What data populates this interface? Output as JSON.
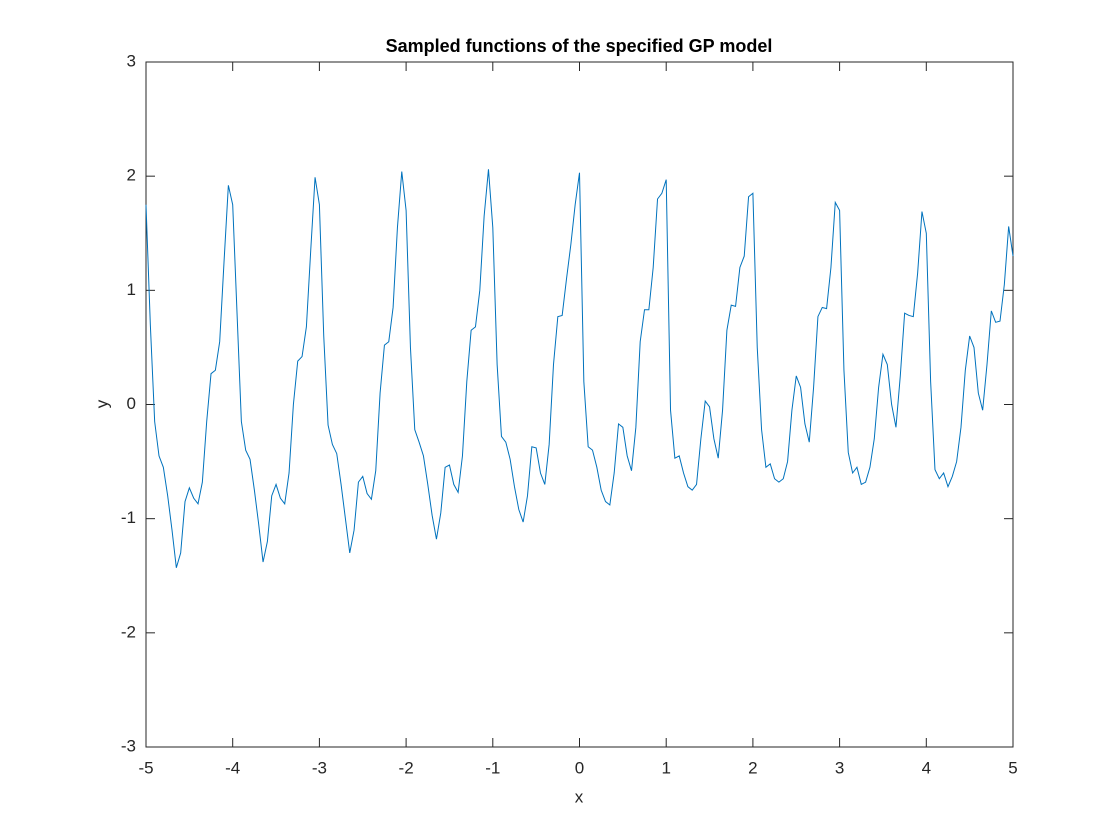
{
  "chart_data": {
    "type": "line",
    "title": "Sampled functions of the specified GP model",
    "x_label": "x",
    "y_label": "y",
    "color": "#0072bd",
    "x": [
      -5,
      -4.95,
      -4.9,
      -4.85,
      -4.8,
      -4.75,
      -4.7,
      -4.65,
      -4.6,
      -4.55,
      -4.5,
      -4.45,
      -4.4,
      -4.35,
      -4.3,
      -4.25,
      -4.2,
      -4.15,
      -4.1,
      -4.05,
      -4,
      -3.95,
      -3.9,
      -3.85,
      -3.8,
      -3.75,
      -3.7,
      -3.65,
      -3.6,
      -3.55,
      -3.5,
      -3.45,
      -3.4,
      -3.35,
      -3.3,
      -3.25,
      -3.2,
      -3.15,
      -3.1,
      -3.05,
      -3,
      -2.95,
      -2.9,
      -2.85,
      -2.8,
      -2.75,
      -2.7,
      -2.65,
      -2.6,
      -2.55,
      -2.5,
      -2.45,
      -2.4,
      -2.35,
      -2.3,
      -2.25,
      -2.2,
      -2.15,
      -2.1,
      -2.05,
      -2,
      -1.95,
      -1.9,
      -1.85,
      -1.8,
      -1.75,
      -1.7,
      -1.65,
      -1.6,
      -1.55,
      -1.5,
      -1.45,
      -1.4,
      -1.35,
      -1.3,
      -1.25,
      -1.2,
      -1.15,
      -1.1,
      -1.05,
      -1,
      -0.95,
      -0.9,
      -0.85,
      -0.8,
      -0.75,
      -0.7,
      -0.65,
      -0.6,
      -0.55,
      -0.5,
      -0.45,
      -0.4,
      -0.35,
      -0.3,
      -0.25,
      -0.2,
      -0.15,
      -0.1,
      -0.05,
      0,
      0.05,
      0.1,
      0.15,
      0.2,
      0.25,
      0.3,
      0.35,
      0.4,
      0.45,
      0.5,
      0.55,
      0.6,
      0.65,
      0.7,
      0.75,
      0.8,
      0.85,
      0.9,
      0.95,
      1,
      1.05,
      1.1,
      1.15,
      1.2,
      1.25,
      1.3,
      1.35,
      1.4,
      1.45,
      1.5,
      1.55,
      1.6,
      1.65,
      1.7,
      1.75,
      1.8,
      1.85,
      1.9,
      1.95,
      2,
      2.05,
      2.1,
      2.15,
      2.2,
      2.25,
      2.3,
      2.35,
      2.4,
      2.45,
      2.5,
      2.55,
      2.6,
      2.65,
      2.7,
      2.75,
      2.8,
      2.85,
      2.9,
      2.95,
      3,
      3.05,
      3.1,
      3.15,
      3.2,
      3.25,
      3.3,
      3.35,
      3.4,
      3.45,
      3.5,
      3.55,
      3.6,
      3.65,
      3.7,
      3.75,
      3.8,
      3.85,
      3.9,
      3.95,
      4,
      4.05,
      4.1,
      4.15,
      4.2,
      4.25,
      4.3,
      4.35,
      4.4,
      4.45,
      4.5,
      4.55,
      4.6,
      4.65,
      4.7,
      4.75,
      4.8,
      4.85,
      4.9,
      4.95,
      5
    ],
    "values": [
      1.75,
      0.7,
      -0.15,
      -0.45,
      -0.55,
      -0.8,
      -1.1,
      -1.43,
      -1.3,
      -0.85,
      -0.73,
      -0.82,
      -0.87,
      -0.68,
      -0.15,
      0.27,
      0.3,
      0.55,
      1.25,
      1.92,
      1.75,
      0.8,
      -0.15,
      -0.4,
      -0.48,
      -0.75,
      -1.05,
      -1.38,
      -1.2,
      -0.8,
      -0.7,
      -0.82,
      -0.87,
      -0.6,
      0.0,
      0.38,
      0.42,
      0.68,
      1.35,
      1.99,
      1.75,
      0.6,
      -0.18,
      -0.35,
      -0.43,
      -0.7,
      -1.0,
      -1.3,
      -1.1,
      -0.68,
      -0.63,
      -0.78,
      -0.83,
      -0.58,
      0.1,
      0.52,
      0.55,
      0.85,
      1.55,
      2.04,
      1.7,
      0.5,
      -0.22,
      -0.33,
      -0.45,
      -0.7,
      -0.97,
      -1.18,
      -0.95,
      -0.55,
      -0.53,
      -0.7,
      -0.77,
      -0.45,
      0.2,
      0.65,
      0.68,
      1.0,
      1.65,
      2.06,
      1.55,
      0.35,
      -0.28,
      -0.33,
      -0.48,
      -0.72,
      -0.92,
      -1.03,
      -0.8,
      -0.37,
      -0.38,
      -0.6,
      -0.7,
      -0.35,
      0.35,
      0.77,
      0.78,
      1.1,
      1.4,
      1.75,
      2.03,
      0.2,
      -0.37,
      -0.4,
      -0.55,
      -0.75,
      -0.85,
      -0.88,
      -0.6,
      -0.17,
      -0.2,
      -0.45,
      -0.58,
      -0.2,
      0.55,
      0.83,
      0.83,
      1.2,
      1.8,
      1.85,
      1.97,
      -0.05,
      -0.47,
      -0.45,
      -0.6,
      -0.72,
      -0.75,
      -0.7,
      -0.3,
      0.03,
      -0.02,
      -0.3,
      -0.47,
      -0.05,
      0.65,
      0.87,
      0.86,
      1.2,
      1.3,
      1.82,
      1.85,
      0.5,
      -0.22,
      -0.55,
      -0.52,
      -0.65,
      -0.68,
      -0.65,
      -0.5,
      -0.05,
      0.25,
      0.15,
      -0.17,
      -0.33,
      0.15,
      0.77,
      0.85,
      0.84,
      1.2,
      1.77,
      1.7,
      0.3,
      -0.42,
      -0.6,
      -0.55,
      -0.7,
      -0.68,
      -0.55,
      -0.3,
      0.15,
      0.44,
      0.35,
      0.0,
      -0.2,
      0.25,
      0.8,
      0.78,
      0.77,
      1.15,
      1.69,
      1.5,
      0.2,
      -0.57,
      -0.65,
      -0.6,
      -0.72,
      -0.63,
      -0.5,
      -0.2,
      0.3,
      0.6,
      0.5,
      0.1,
      -0.05,
      0.35,
      0.82,
      0.72,
      0.73,
      1.05,
      1.56,
      1.3
    ],
    "xlim": [
      -5,
      5
    ],
    "xticks": [
      -5,
      -4,
      -3,
      -2,
      -1,
      0,
      1,
      2,
      3,
      4,
      5
    ],
    "ylim": [
      -3,
      3
    ],
    "yticks": [
      -3,
      -2,
      -1,
      0,
      1,
      2,
      3
    ]
  }
}
